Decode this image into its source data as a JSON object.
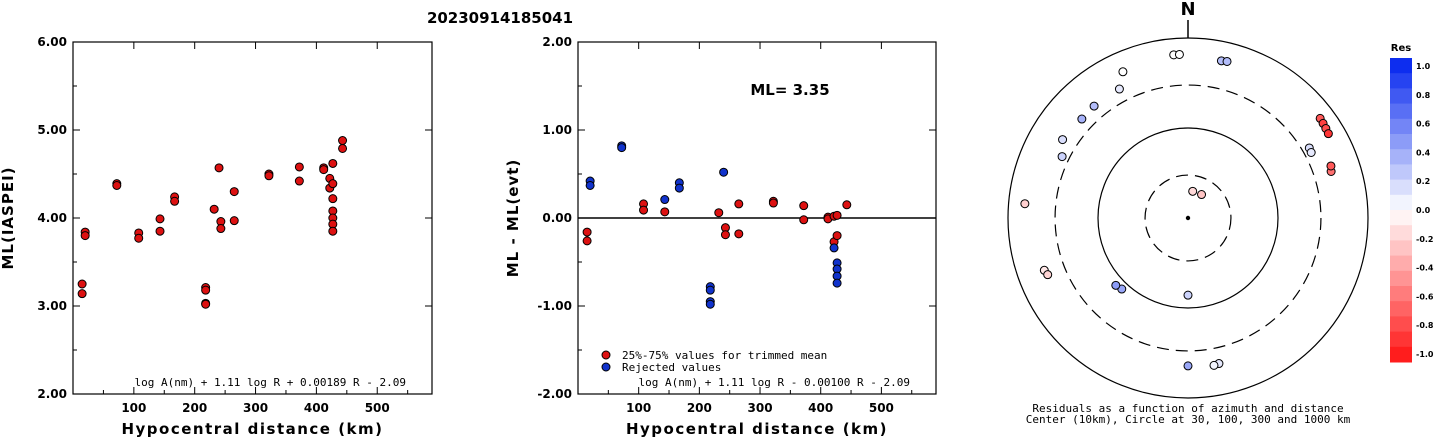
{
  "title": "20230914185041",
  "chart_data": [
    {
      "type": "scatter",
      "id": "magnitude-vs-distance",
      "ylabel": "ML(IASPEI)",
      "xlabel": "Hypocentral distance (km)",
      "xlim": [
        0,
        590
      ],
      "ylim": [
        2.0,
        6.0
      ],
      "x_ticks": [
        "100",
        "200",
        "300",
        "400",
        "500"
      ],
      "y_ticks": [
        "2.00",
        "3.00",
        "4.00",
        "5.00",
        "6.00"
      ],
      "formula": "log A(nm) + 1.11 log R + 0.00189 R - 2.09",
      "series": [
        {
          "color": "#dd1111",
          "points": [
            [
              15,
              3.25
            ],
            [
              15,
              3.14
            ],
            [
              20,
              3.84
            ],
            [
              20,
              3.8
            ],
            [
              72,
              4.39
            ],
            [
              72,
              4.37
            ],
            [
              108,
              3.83
            ],
            [
              108,
              3.77
            ],
            [
              143,
              3.99
            ],
            [
              143,
              3.85
            ],
            [
              167,
              4.24
            ],
            [
              167,
              4.19
            ],
            [
              218,
              3.21
            ],
            [
              218,
              3.18
            ],
            [
              218,
              3.03
            ],
            [
              218,
              3.02
            ],
            [
              232,
              4.1
            ],
            [
              240,
              4.57
            ],
            [
              243,
              3.96
            ],
            [
              243,
              3.88
            ],
            [
              265,
              4.3
            ],
            [
              265,
              3.97
            ],
            [
              322,
              4.5
            ],
            [
              322,
              4.48
            ],
            [
              372,
              4.58
            ],
            [
              372,
              4.42
            ],
            [
              412,
              4.57
            ],
            [
              412,
              4.55
            ],
            [
              422,
              4.45
            ],
            [
              422,
              4.34
            ],
            [
              427,
              4.62
            ],
            [
              427,
              4.39
            ],
            [
              427,
              4.22
            ],
            [
              427,
              4.08
            ],
            [
              427,
              4.0
            ],
            [
              427,
              3.93
            ],
            [
              427,
              3.85
            ],
            [
              443,
              4.88
            ],
            [
              443,
              4.79
            ]
          ]
        }
      ]
    },
    {
      "type": "scatter",
      "id": "residual-vs-distance",
      "ylabel": "ML - ML(evt)",
      "xlabel": "Hypocentral distance (km)",
      "xlim": [
        0,
        590
      ],
      "ylim": [
        -2.0,
        2.0
      ],
      "x_ticks": [
        "100",
        "200",
        "300",
        "400",
        "500"
      ],
      "y_ticks": [
        "-2.00",
        "-1.00",
        "0.00",
        "1.00",
        "2.00"
      ],
      "annotation": "ML= 3.35",
      "formula": "log A(nm) + 1.11 log R - 0.00100 R - 2.09",
      "legend": [
        "25%-75% values for trimmed mean",
        "Rejected values"
      ],
      "series": [
        {
          "name": "25%-75% values for trimmed mean",
          "color": "#dd1111",
          "points": [
            [
              15,
              -0.16
            ],
            [
              15,
              -0.26
            ],
            [
              108,
              0.16
            ],
            [
              108,
              0.09
            ],
            [
              143,
              0.07
            ],
            [
              232,
              0.06
            ],
            [
              243,
              -0.11
            ],
            [
              243,
              -0.19
            ],
            [
              265,
              0.16
            ],
            [
              265,
              -0.18
            ],
            [
              322,
              0.19
            ],
            [
              322,
              0.17
            ],
            [
              372,
              0.14
            ],
            [
              372,
              -0.02
            ],
            [
              412,
              0.01
            ],
            [
              412,
              -0.01
            ],
            [
              422,
              0.02
            ],
            [
              422,
              -0.27
            ],
            [
              427,
              0.03
            ],
            [
              427,
              -0.2
            ],
            [
              443,
              0.15
            ]
          ]
        },
        {
          "name": "Rejected values",
          "color": "#1133cc",
          "points": [
            [
              20,
              0.42
            ],
            [
              20,
              0.37
            ],
            [
              72,
              0.82
            ],
            [
              72,
              0.8
            ],
            [
              143,
              0.21
            ],
            [
              167,
              0.4
            ],
            [
              167,
              0.34
            ],
            [
              218,
              -0.78
            ],
            [
              218,
              -0.82
            ],
            [
              218,
              -0.95
            ],
            [
              218,
              -0.98
            ],
            [
              240,
              0.52
            ],
            [
              422,
              -0.34
            ],
            [
              427,
              -0.51
            ],
            [
              427,
              -0.58
            ],
            [
              427,
              -0.66
            ],
            [
              427,
              -0.74
            ]
          ]
        }
      ]
    },
    {
      "type": "scatter",
      "id": "azimuth-distance-residuals",
      "north_label": "N",
      "caption_line1": "Residuals as a function of azimuth and distance",
      "caption_line2": "Center (10km), Circle at 30, 100, 300 and 1000 km",
      "rings_km": [
        30,
        100,
        300,
        1000
      ],
      "stations": [
        {
          "az": 10,
          "dist": 20,
          "res": -0.16
        },
        {
          "az": 30,
          "dist": 20,
          "res": -0.25
        },
        {
          "az": 180,
          "dist": 72,
          "res": 0.2
        },
        {
          "az": 223,
          "dist": 120,
          "res": 0.4
        },
        {
          "az": 227,
          "dist": 125,
          "res": 0.45
        },
        {
          "az": 320,
          "dist": 420,
          "res": 0.3
        },
        {
          "az": 313,
          "dist": 410,
          "res": 0.35
        },
        {
          "az": 302,
          "dist": 440,
          "res": 0.15
        },
        {
          "az": 296,
          "dist": 360,
          "res": 0.2
        },
        {
          "az": 275,
          "dist": 660,
          "res": -0.2
        },
        {
          "az": 250,
          "dist": 500,
          "res": -0.1
        },
        {
          "az": 248,
          "dist": 480,
          "res": -0.18
        },
        {
          "az": 336,
          "dist": 600,
          "res": 0.0
        },
        {
          "az": 332,
          "dist": 420,
          "res": 0.1
        },
        {
          "az": 355,
          "dist": 660,
          "res": 0.0
        },
        {
          "az": 357,
          "dist": 660,
          "res": 0.0
        },
        {
          "az": 12,
          "dist": 610,
          "res": 0.3
        },
        {
          "az": 14,
          "dist": 620,
          "res": 0.3
        },
        {
          "az": 53,
          "dist": 690,
          "res": -0.7
        },
        {
          "az": 55,
          "dist": 680,
          "res": -0.8
        },
        {
          "az": 57,
          "dist": 670,
          "res": -0.75
        },
        {
          "az": 59,
          "dist": 660,
          "res": -0.85
        },
        {
          "az": 72,
          "dist": 470,
          "res": -0.6
        },
        {
          "az": 70,
          "dist": 490,
          "res": -0.7
        },
        {
          "az": 60,
          "dist": 360,
          "res": 0.15
        },
        {
          "az": 62,
          "dist": 355,
          "res": 0.1
        },
        {
          "az": 168,
          "dist": 450,
          "res": 0.1
        },
        {
          "az": 170,
          "dist": 460,
          "res": 0.05
        },
        {
          "az": 180,
          "dist": 440,
          "res": 0.4
        }
      ]
    },
    {
      "type": "heatmap",
      "id": "residual-colorbar",
      "title": "Res",
      "tick_labels": [
        "1.0",
        "0.8",
        "0.6",
        "0.4",
        "0.2",
        "0.0",
        "-0.2",
        "-0.4",
        "-0.6",
        "-0.8",
        "-1.0"
      ],
      "range": [
        -1.0,
        1.0
      ],
      "color_positive": "#0022ee",
      "color_negative": "#ff1111"
    }
  ],
  "colors": {
    "axis": "#000000",
    "accepted": "#dd1111",
    "rejected": "#1133cc"
  }
}
